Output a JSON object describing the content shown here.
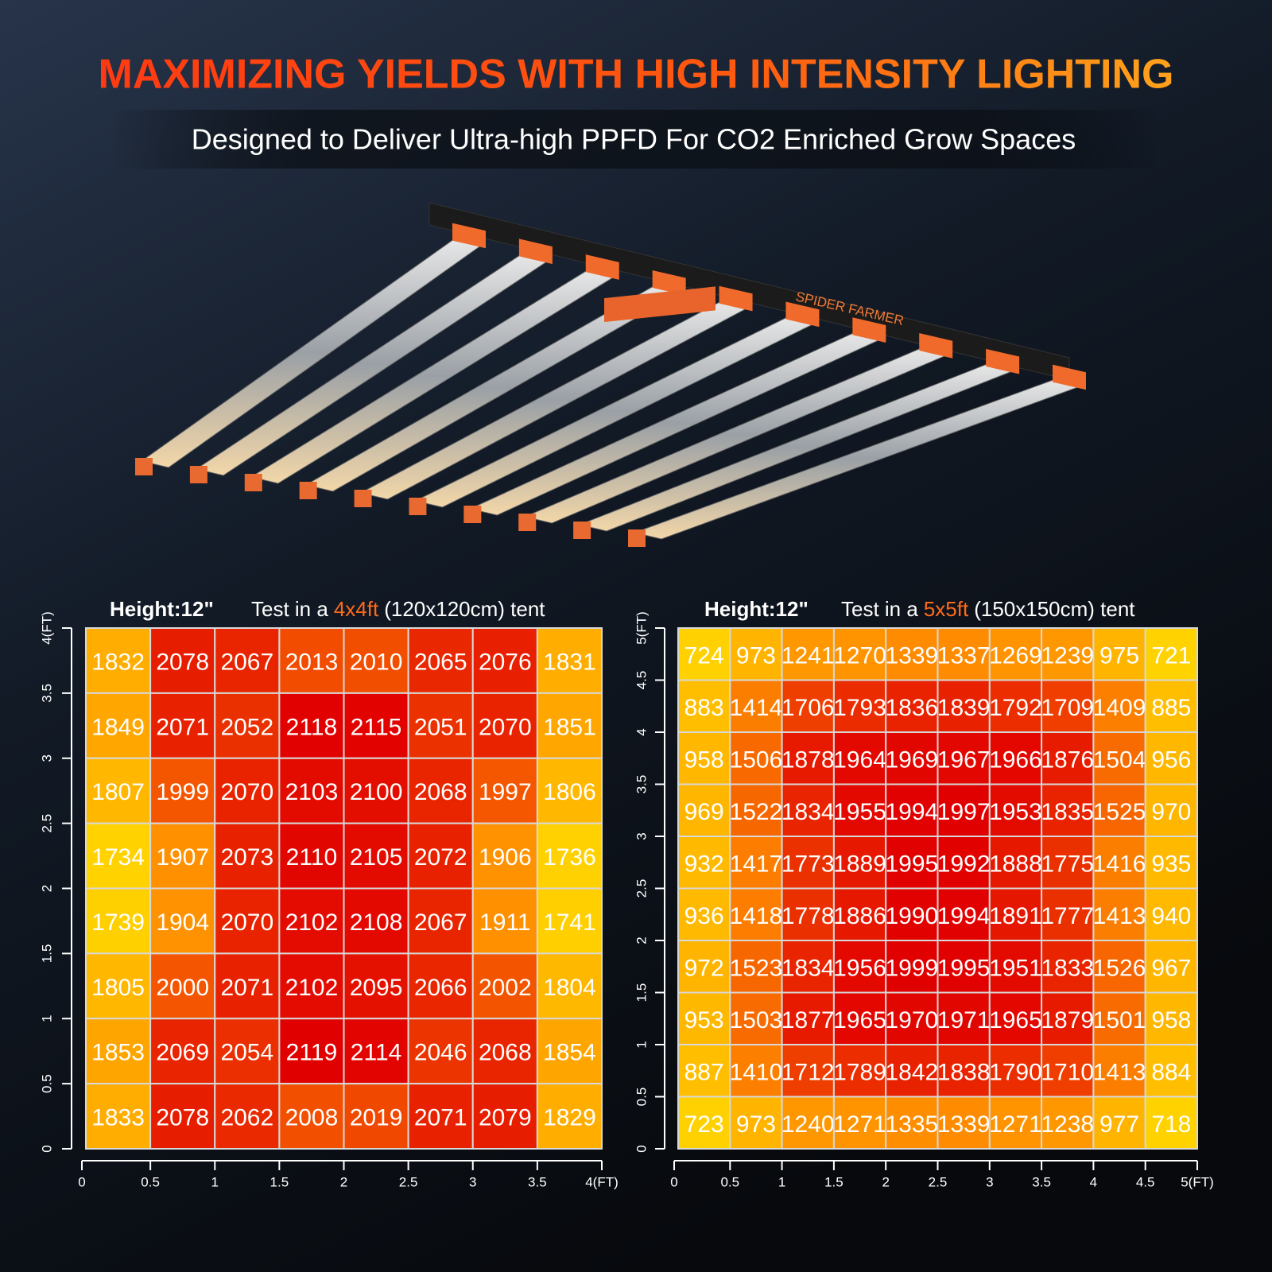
{
  "header": {
    "title": "MAXIMIZING YIELDS WITH HIGH INTENSITY LIGHTING",
    "subtitle": "Designed to Deliver Ultra-high PPFD For CO2 Enriched Grow Spaces"
  },
  "product": {
    "brand": "SPIDER FARMER"
  },
  "chart_data": [
    {
      "type": "heatmap",
      "height_label": "Height:12\"",
      "caption_parts": [
        "Test in a",
        "4x4ft",
        "(120x120cm) tent"
      ],
      "xlim": [
        0,
        4
      ],
      "ylim": [
        0,
        4
      ],
      "xticks": [
        0,
        0.5,
        1,
        1.5,
        2,
        2.5,
        3,
        3.5,
        {
          "value": 4,
          "label": "4(FT)"
        }
      ],
      "yticks": [
        0,
        0.5,
        1,
        1.5,
        2,
        2.5,
        3,
        3.5,
        {
          "value": 4,
          "label": "4(FT)"
        }
      ],
      "colorscale": [
        "#ffd200",
        "#ff8a00",
        "#e10000"
      ],
      "rows": [
        [
          1832,
          2078,
          2067,
          2013,
          2010,
          2065,
          2076,
          1831
        ],
        [
          1849,
          2071,
          2052,
          2118,
          2115,
          2051,
          2070,
          1851
        ],
        [
          1807,
          1999,
          2070,
          2103,
          2100,
          2068,
          1997,
          1806
        ],
        [
          1734,
          1907,
          2073,
          2110,
          2105,
          2072,
          1906,
          1736
        ],
        [
          1739,
          1904,
          2070,
          2102,
          2108,
          2067,
          1911,
          1741
        ],
        [
          1805,
          2000,
          2071,
          2102,
          2095,
          2066,
          2002,
          1804
        ],
        [
          1853,
          2069,
          2054,
          2119,
          2114,
          2046,
          2068,
          1854
        ],
        [
          1833,
          2078,
          2062,
          2008,
          2019,
          2071,
          2079,
          1829
        ]
      ]
    },
    {
      "type": "heatmap",
      "height_label": "Height:12\"",
      "caption_parts": [
        "Test in a",
        "5x5ft",
        "(150x150cm) tent"
      ],
      "xlim": [
        0,
        5
      ],
      "ylim": [
        0,
        5
      ],
      "xticks": [
        0,
        0.5,
        1,
        1.5,
        2,
        2.5,
        3,
        3.5,
        4,
        4.5,
        {
          "value": 5,
          "label": "5(FT)"
        }
      ],
      "yticks": [
        0,
        0.5,
        1,
        1.5,
        2,
        2.5,
        3,
        3.5,
        4,
        4.5,
        {
          "value": 5,
          "label": "5(FT)"
        }
      ],
      "colorscale": [
        "#ffd200",
        "#ff8a00",
        "#e10000"
      ],
      "rows": [
        [
          724,
          973,
          1241,
          1270,
          1339,
          1337,
          1269,
          1239,
          975,
          721
        ],
        [
          883,
          1414,
          1706,
          1793,
          1836,
          1839,
          1792,
          1709,
          1409,
          885
        ],
        [
          958,
          1506,
          1878,
          1964,
          1969,
          1967,
          1966,
          1876,
          1504,
          956
        ],
        [
          969,
          1522,
          1834,
          1955,
          1994,
          1997,
          1953,
          1835,
          1525,
          970
        ],
        [
          932,
          1417,
          1773,
          1889,
          1995,
          1992,
          1888,
          1775,
          1416,
          935
        ],
        [
          936,
          1418,
          1778,
          1886,
          1990,
          1994,
          1891,
          1777,
          1413,
          940
        ],
        [
          972,
          1523,
          1834,
          1956,
          1999,
          1995,
          1951,
          1833,
          1526,
          967
        ],
        [
          953,
          1503,
          1877,
          1965,
          1970,
          1971,
          1965,
          1879,
          1501,
          958
        ],
        [
          887,
          1410,
          1712,
          1789,
          1842,
          1838,
          1790,
          1710,
          1413,
          884
        ],
        [
          723,
          973,
          1240,
          1271,
          1335,
          1339,
          1271,
          1238,
          977,
          718
        ]
      ]
    }
  ]
}
